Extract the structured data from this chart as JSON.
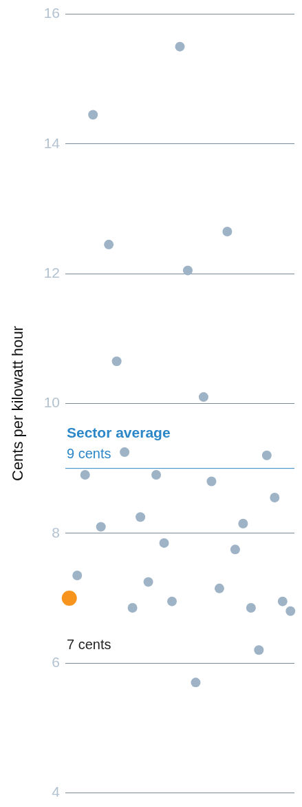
{
  "chart_data": {
    "type": "scatter",
    "ylabel": "Cents per kilowatt hour",
    "categories": [
      null,
      null,
      null,
      null,
      null,
      null,
      null,
      null,
      null,
      null,
      null,
      null,
      null,
      null,
      null,
      null,
      null,
      null,
      null,
      null,
      null,
      null,
      null,
      null,
      null,
      null,
      null,
      null,
      null
    ],
    "ylim": [
      4,
      16
    ],
    "yticks": [
      4,
      6,
      8,
      10,
      12,
      14,
      16
    ],
    "tick_labels": "y",
    "grid": "y",
    "marker": "circle",
    "series": [
      {
        "color": "#9fb3c6",
        "values": [
          null,
          7.35,
          8.9,
          14.45,
          8.1,
          12.45,
          10.65,
          9.25,
          6.85,
          8.25,
          7.25,
          8.9,
          7.85,
          6.95,
          15.5,
          12.05,
          5.7,
          10.1,
          8.8,
          7.15,
          12.65,
          7.75,
          8.15,
          6.85,
          6.2,
          9.2,
          8.55,
          6.95,
          6.8
        ]
      },
      {
        "color": "#f7941d",
        "values": [
          7,
          null,
          null,
          null,
          null,
          null,
          null,
          null,
          null,
          null,
          null,
          null,
          null,
          null,
          null,
          null,
          null,
          null,
          null,
          null,
          null,
          null,
          null,
          null,
          null,
          null,
          null,
          null,
          null
        ]
      }
    ],
    "ref_lines": [
      {
        "axis": "y",
        "value": 9,
        "label": "Sector average",
        "color": "#2b87c8"
      }
    ],
    "annotations": [
      {
        "text": "9 cents",
        "y": 9
      },
      "7 cents"
    ]
  }
}
